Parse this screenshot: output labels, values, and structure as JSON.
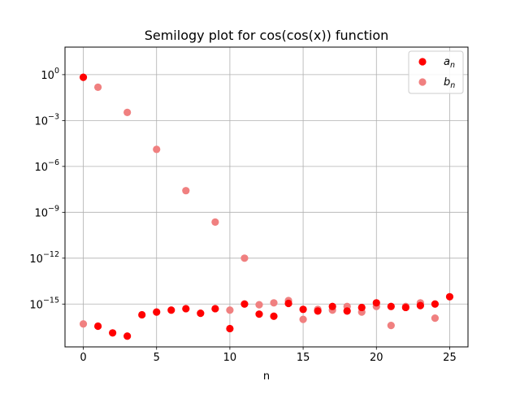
{
  "chart_data": {
    "type": "scatter",
    "title": "Semilogy plot for cos(cos(x)) function",
    "xlabel": "n",
    "ylabel": "",
    "xscale": "linear",
    "yscale": "log",
    "xlim": [
      -1.25,
      26.25
    ],
    "ylim_log10": [
      -17.8,
      1.8
    ],
    "xticks": [
      0,
      5,
      10,
      15,
      20,
      25
    ],
    "xtick_labels": [
      "0",
      "5",
      "10",
      "15",
      "20",
      "25"
    ],
    "yticks_log10": [
      0,
      -3,
      -6,
      -9,
      -12,
      -15
    ],
    "ytick_labels": [
      {
        "base": "10",
        "exp": "0"
      },
      {
        "base": "10",
        "exp": "−3"
      },
      {
        "base": "10",
        "exp": "−6"
      },
      {
        "base": "10",
        "exp": "−9"
      },
      {
        "base": "10",
        "exp": "−12"
      },
      {
        "base": "10",
        "exp": "−15"
      }
    ],
    "grid": true,
    "legend_position": "top-right",
    "series": [
      {
        "name_base": "a",
        "name_sub": "n",
        "color": "#ff0000",
        "points": [
          {
            "x": 0,
            "y": 0.67
          },
          {
            "x": 1,
            "y": 3.6e-17
          },
          {
            "x": 2,
            "y": 1.3e-17
          },
          {
            "x": 3,
            "y": 8e-18
          },
          {
            "x": 4,
            "y": 2e-16
          },
          {
            "x": 5,
            "y": 3e-16
          },
          {
            "x": 6,
            "y": 4e-16
          },
          {
            "x": 7,
            "y": 5e-16
          },
          {
            "x": 8,
            "y": 2.5e-16
          },
          {
            "x": 9,
            "y": 5e-16
          },
          {
            "x": 10,
            "y": 2.5e-17
          },
          {
            "x": 11,
            "y": 1e-15
          },
          {
            "x": 12,
            "y": 2.2e-16
          },
          {
            "x": 13,
            "y": 1.6e-16
          },
          {
            "x": 14,
            "y": 1.1e-15
          },
          {
            "x": 15,
            "y": 4.5e-16
          },
          {
            "x": 16,
            "y": 3.5e-16
          },
          {
            "x": 17,
            "y": 7e-16
          },
          {
            "x": 18,
            "y": 3.5e-16
          },
          {
            "x": 19,
            "y": 6e-16
          },
          {
            "x": 20,
            "y": 1.2e-15
          },
          {
            "x": 21,
            "y": 7e-16
          },
          {
            "x": 22,
            "y": 6e-16
          },
          {
            "x": 23,
            "y": 8e-16
          },
          {
            "x": 24,
            "y": 1e-15
          },
          {
            "x": 25,
            "y": 3e-15
          }
        ]
      },
      {
        "name_base": "b",
        "name_sub": "n",
        "color": "#f08080",
        "points": [
          {
            "x": 0,
            "y": 5e-17
          },
          {
            "x": 1,
            "y": 0.15
          },
          {
            "x": 3,
            "y": 0.0034
          },
          {
            "x": 5,
            "y": 1.3e-05
          },
          {
            "x": 7,
            "y": 2.6e-08
          },
          {
            "x": 9,
            "y": 2.3e-10
          },
          {
            "x": 10,
            "y": 4e-16
          },
          {
            "x": 11,
            "y": 1e-12
          },
          {
            "x": 12,
            "y": 9e-16
          },
          {
            "x": 13,
            "y": 1.2e-15
          },
          {
            "x": 14,
            "y": 1.7e-15
          },
          {
            "x": 15,
            "y": 1e-16
          },
          {
            "x": 16,
            "y": 4.5e-16
          },
          {
            "x": 17,
            "y": 4e-16
          },
          {
            "x": 18,
            "y": 7e-16
          },
          {
            "x": 19,
            "y": 3e-16
          },
          {
            "x": 20,
            "y": 7e-16
          },
          {
            "x": 21,
            "y": 4e-17
          },
          {
            "x": 22,
            "y": 7e-16
          },
          {
            "x": 23,
            "y": 1.2e-15
          },
          {
            "x": 24,
            "y": 1.2e-16
          }
        ]
      }
    ]
  }
}
